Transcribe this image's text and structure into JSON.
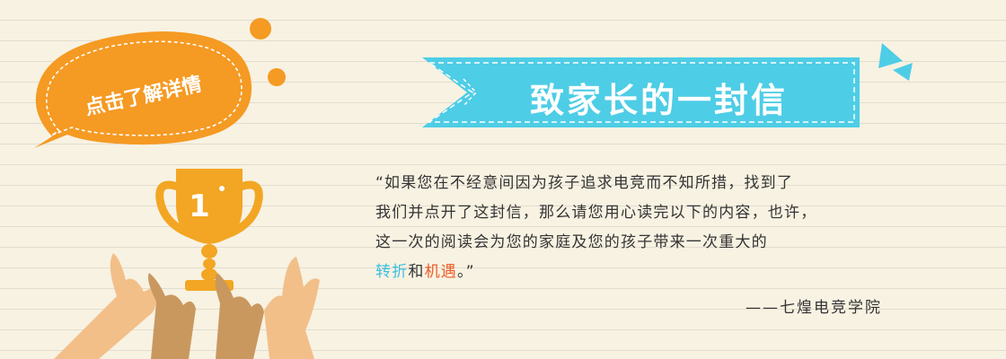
{
  "cta": {
    "label": "点击了解详情"
  },
  "banner": {
    "title": "致家长的一封信"
  },
  "trophy": {
    "rank": "1"
  },
  "letter": {
    "open_quote": "“",
    "line1": "如果您在不经意间因为孩子追求电竞而不知所措，找到了",
    "line2": "我们并点开了这封信，那么请您用心读完以下的内容，也许，",
    "line3": "这一次的阅读会为您的家庭及您的孩子带来一次重大的",
    "highlight1": "转折",
    "conjunction": "和",
    "highlight2": "机遇",
    "ending": "。”"
  },
  "signature": "——七煌电竞学院",
  "colors": {
    "background": "#f8f2e2",
    "ribbon": "#4ecde6",
    "bubble": "#f59a23",
    "trophy": "#f2a623",
    "highlight_blue": "#39bfe0",
    "highlight_orange": "#ef5a25",
    "text": "#333333"
  }
}
